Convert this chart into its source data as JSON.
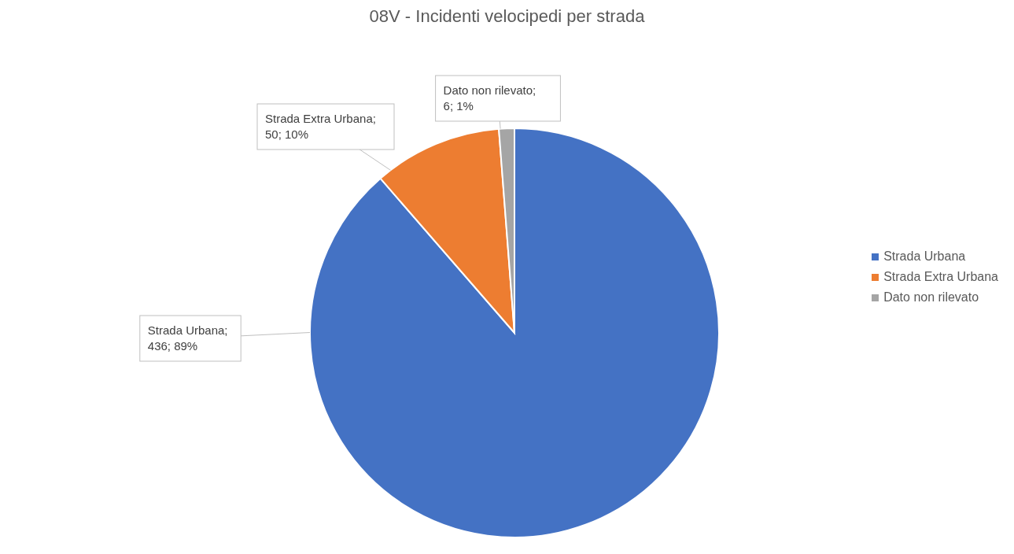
{
  "chart_data": {
    "type": "pie",
    "title": "08V - Incidenti velocipedi  per strada",
    "categories": [
      "Strada Urbana",
      "Strada Extra Urbana",
      "Dato non rilevato"
    ],
    "values": [
      436,
      50,
      6
    ],
    "colors": [
      "#4472c4",
      "#ed7d31",
      "#a5a5a5"
    ],
    "value_labels": [
      "Strada Urbana; 436; 89%",
      "Strada Extra Urbana; 50; 10%",
      "Dato non rilevato; 6; 1%"
    ],
    "legend": "right"
  }
}
